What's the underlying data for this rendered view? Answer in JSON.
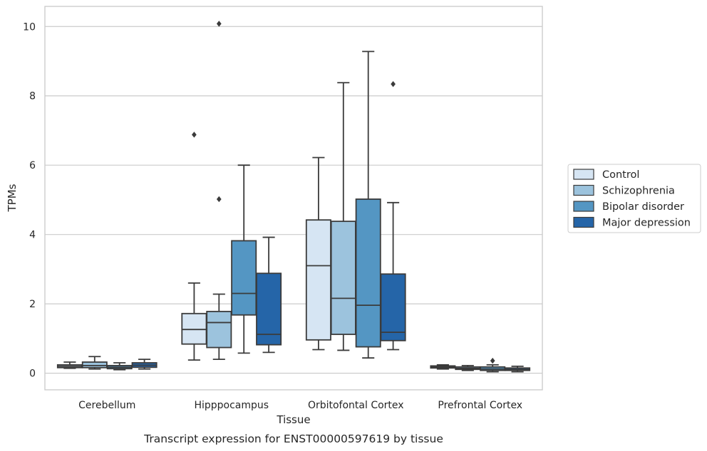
{
  "chart_data": {
    "type": "boxplot",
    "caption": "Transcript expression for ENST00000597619 by tissue",
    "xlabel": "Tissue",
    "ylabel": "TPMs",
    "ylim": [
      -0.48,
      10.58
    ],
    "yticks": [
      0,
      2,
      4,
      6,
      8,
      10
    ],
    "grid": true,
    "legend_position": "right",
    "categories": [
      "Cerebellum",
      "Hipppocampus",
      "Orbitofontal Cortex",
      "Prefrontal Cortex"
    ],
    "series": [
      {
        "name": "Control",
        "color": "#d6e5f3",
        "boxes": [
          {
            "whislo": 0.14,
            "q1": 0.16,
            "med": 0.2,
            "q3": 0.24,
            "whishi": 0.32,
            "fliers": []
          },
          {
            "whislo": 0.38,
            "q1": 0.84,
            "med": 1.26,
            "q3": 1.72,
            "whishi": 2.6,
            "fliers": [
              6.88
            ]
          },
          {
            "whislo": 0.68,
            "q1": 0.96,
            "med": 3.1,
            "q3": 4.42,
            "whishi": 6.22,
            "fliers": []
          },
          {
            "whislo": 0.12,
            "q1": 0.15,
            "med": 0.18,
            "q3": 0.21,
            "whishi": 0.24,
            "fliers": []
          }
        ]
      },
      {
        "name": "Schizophrenia",
        "color": "#9cc3dd",
        "boxes": [
          {
            "whislo": 0.12,
            "q1": 0.16,
            "med": 0.22,
            "q3": 0.32,
            "whishi": 0.48,
            "fliers": []
          },
          {
            "whislo": 0.4,
            "q1": 0.74,
            "med": 1.46,
            "q3": 1.78,
            "whishi": 2.28,
            "fliers": [
              5.02,
              10.08
            ]
          },
          {
            "whislo": 0.66,
            "q1": 1.12,
            "med": 2.16,
            "q3": 4.38,
            "whishi": 8.38,
            "fliers": []
          },
          {
            "whislo": 0.08,
            "q1": 0.11,
            "med": 0.14,
            "q3": 0.18,
            "whishi": 0.22,
            "fliers": []
          }
        ]
      },
      {
        "name": "Bipolar disorder",
        "color": "#5496c3",
        "boxes": [
          {
            "whislo": 0.1,
            "q1": 0.13,
            "med": 0.17,
            "q3": 0.22,
            "whishi": 0.3,
            "fliers": []
          },
          {
            "whislo": 0.58,
            "q1": 1.68,
            "med": 2.3,
            "q3": 3.82,
            "whishi": 6.0,
            "fliers": []
          },
          {
            "whislo": 0.44,
            "q1": 0.76,
            "med": 1.96,
            "q3": 5.02,
            "whishi": 9.28,
            "fliers": []
          },
          {
            "whislo": 0.04,
            "q1": 0.08,
            "med": 0.12,
            "q3": 0.18,
            "whishi": 0.24,
            "fliers": [
              0.36
            ]
          }
        ]
      },
      {
        "name": "Major depression",
        "color": "#2565a8",
        "boxes": [
          {
            "whislo": 0.12,
            "q1": 0.17,
            "med": 0.23,
            "q3": 0.3,
            "whishi": 0.4,
            "fliers": []
          },
          {
            "whislo": 0.6,
            "q1": 0.82,
            "med": 1.12,
            "q3": 2.88,
            "whishi": 3.92,
            "fliers": []
          },
          {
            "whislo": 0.68,
            "q1": 0.94,
            "med": 1.18,
            "q3": 2.86,
            "whishi": 4.92,
            "fliers": [
              8.34
            ]
          },
          {
            "whislo": 0.04,
            "q1": 0.08,
            "med": 0.11,
            "q3": 0.15,
            "whishi": 0.2,
            "fliers": []
          }
        ]
      }
    ]
  }
}
